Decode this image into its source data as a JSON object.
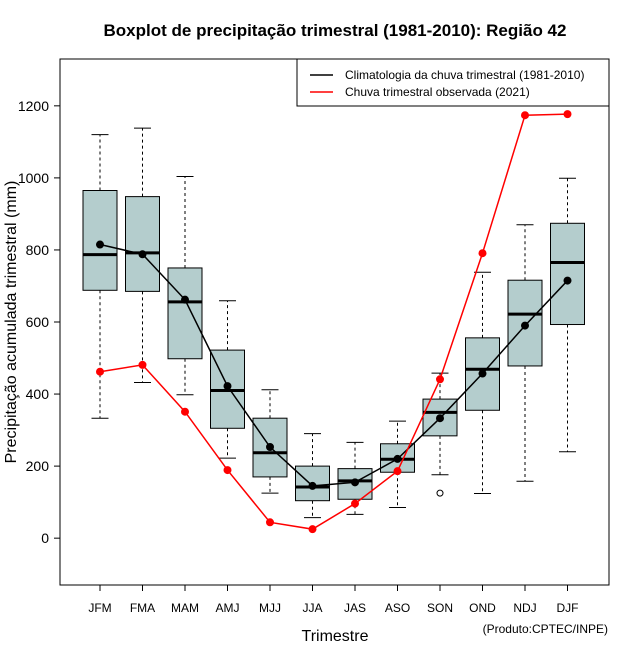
{
  "chart_data": {
    "type": "boxplot",
    "title": "Boxplot de precipitação trimestral (1981-2010): Região 42",
    "xlabel": "Trimestre",
    "ylabel": "Precipitação acumulada trimestral (mm)",
    "credit": "(Produto:CPTEC/INPE)",
    "ylim": [
      -130,
      1330
    ],
    "yticks": [
      0,
      200,
      400,
      600,
      800,
      1000,
      1200
    ],
    "legend_position": "top-right",
    "categories": [
      "JFM",
      "FMA",
      "MAM",
      "AMJ",
      "MJJ",
      "JJA",
      "JAS",
      "ASO",
      "SON",
      "OND",
      "NDJ",
      "DJF"
    ],
    "boxes": [
      {
        "whisker_low": 333,
        "q1": 688,
        "median": 787,
        "q3": 965,
        "whisker_high": 1120,
        "outliers": []
      },
      {
        "whisker_low": 432,
        "q1": 685,
        "median": 792,
        "q3": 948,
        "whisker_high": 1138,
        "outliers": []
      },
      {
        "whisker_low": 398,
        "q1": 498,
        "median": 656,
        "q3": 750,
        "whisker_high": 1004,
        "outliers": []
      },
      {
        "whisker_low": 222,
        "q1": 305,
        "median": 410,
        "q3": 522,
        "whisker_high": 659,
        "outliers": []
      },
      {
        "whisker_low": 125,
        "q1": 170,
        "median": 237,
        "q3": 333,
        "whisker_high": 412,
        "outliers": []
      },
      {
        "whisker_low": 57,
        "q1": 104,
        "median": 142,
        "q3": 200,
        "whisker_high": 290,
        "outliers": []
      },
      {
        "whisker_low": 66,
        "q1": 108,
        "median": 159,
        "q3": 193,
        "whisker_high": 266,
        "outliers": []
      },
      {
        "whisker_low": 85,
        "q1": 183,
        "median": 219,
        "q3": 262,
        "whisker_high": 325,
        "outliers": []
      },
      {
        "whisker_low": 176,
        "q1": 284,
        "median": 349,
        "q3": 386,
        "whisker_high": 458,
        "outliers": [
          125
        ]
      },
      {
        "whisker_low": 124,
        "q1": 355,
        "median": 469,
        "q3": 556,
        "whisker_high": 738,
        "outliers": []
      },
      {
        "whisker_low": 158,
        "q1": 478,
        "median": 622,
        "q3": 716,
        "whisker_high": 870,
        "outliers": []
      },
      {
        "whisker_low": 240,
        "q1": 593,
        "median": 765,
        "q3": 874,
        "whisker_high": 999,
        "outliers": []
      }
    ],
    "series": [
      {
        "name": "Climatologia da chuva trimestral (1981-2010)",
        "color": "#000000",
        "values": [
          815,
          788,
          662,
          422,
          253,
          145,
          155,
          220,
          333,
          457,
          590,
          715
        ]
      },
      {
        "name": "Chuva trimestral observada (2021)",
        "color": "#ff0000",
        "values": [
          462,
          481,
          351,
          189,
          44,
          25,
          96,
          186,
          441,
          791,
          1174,
          1177
        ]
      }
    ],
    "box_fill": "#b4cdcd"
  }
}
